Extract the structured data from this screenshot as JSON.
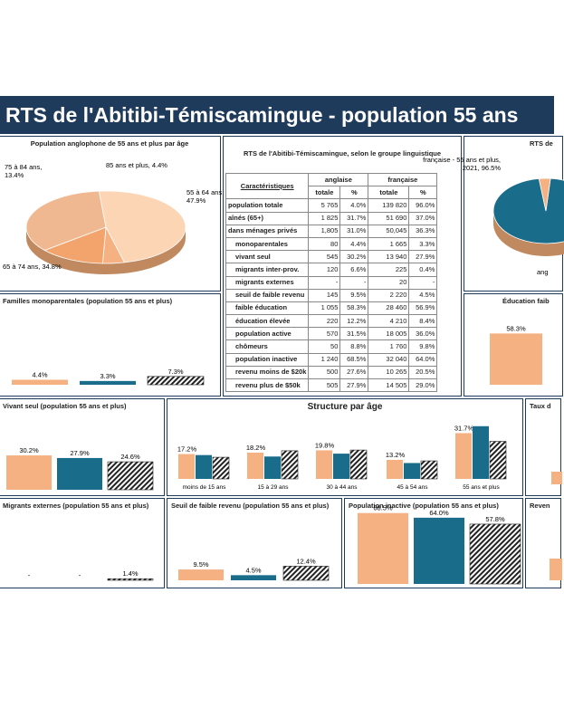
{
  "banner": {
    "title": "RTS de l'Abitibi-Témiscamingue - population 55 ans"
  },
  "colors": {
    "orange": "#f6b183",
    "teal": "#1a6d8a",
    "hatch": "#222222",
    "navy": "#1f3b5c"
  },
  "table": {
    "title": "RTS de l'Abitibi-Témiscamingue, selon le groupe linguistique",
    "header_char": "Caractéristiques",
    "header_groups": [
      "anglaise",
      "française"
    ],
    "header_sub": [
      "totale",
      "%",
      "totale",
      "%"
    ],
    "rows": [
      {
        "label": "population totale",
        "v": [
          "5 765",
          "4.0%",
          "139 820",
          "96.0%"
        ]
      },
      {
        "label": "aînés (65+)",
        "v": [
          "1 825",
          "31.7%",
          "51 690",
          "37.0%"
        ]
      },
      {
        "label": "dans ménages privés",
        "v": [
          "1,805",
          "31.0%",
          "50,045",
          "36.3%"
        ]
      },
      {
        "label": "monoparentales",
        "v": [
          "80",
          "4.4%",
          "1 665",
          "3.3%"
        ]
      },
      {
        "label": "vivant seul",
        "v": [
          "545",
          "30.2%",
          "13 940",
          "27.9%"
        ]
      },
      {
        "label": "migrants inter-prov.",
        "v": [
          "120",
          "6.6%",
          "225",
          "0.4%"
        ]
      },
      {
        "label": "migrants externes",
        "v": [
          "-",
          "-",
          "20",
          "-"
        ]
      },
      {
        "label": "seuil de faible revenu",
        "v": [
          "145",
          "9.5%",
          "2 220",
          "4.5%"
        ]
      },
      {
        "label": "faible éducation",
        "v": [
          "1 055",
          "58.3%",
          "28 460",
          "56.9%"
        ]
      },
      {
        "label": "éducation élevée",
        "v": [
          "220",
          "12.2%",
          "4 210",
          "8.4%"
        ]
      },
      {
        "label": "population active",
        "v": [
          "570",
          "31.5%",
          "18 005",
          "36.0%"
        ]
      },
      {
        "label": "chômeurs",
        "v": [
          "50",
          "8.8%",
          "1 760",
          "9.8%"
        ]
      },
      {
        "label": "population inactive",
        "v": [
          "1 240",
          "68.5%",
          "32 040",
          "64.0%"
        ]
      },
      {
        "label": "revenu moins de $20k",
        "v": [
          "500",
          "27.6%",
          "10 265",
          "20.5%"
        ]
      },
      {
        "label": "revenu plus de $50k",
        "v": [
          "505",
          "27.9%",
          "14 505",
          "29.0%"
        ]
      }
    ]
  },
  "chart_data": [
    {
      "id": "pie_anglo",
      "type": "pie",
      "title": "Population anglophone de 55 ans et plus par âge",
      "slices": [
        {
          "label": "55 à 64 ans, 47.9%",
          "value": 47.9
        },
        {
          "label": "85 ans et plus, 4.4%",
          "value": 4.4
        },
        {
          "label": "75 à 84 ans, 13.4%",
          "value": 13.4
        },
        {
          "label": "65 à 74 ans, 34.8%",
          "value": 34.8
        }
      ]
    },
    {
      "id": "pie_lang",
      "type": "pie",
      "title": "RTS de",
      "slices": [
        {
          "label": "française - 55 ans et plus, 2021, 96.5%",
          "value": 96.5
        },
        {
          "label": "ang",
          "value": 3.5
        }
      ]
    },
    {
      "id": "mono",
      "type": "bar",
      "title": "Familles monoparentales (population 55 ans et plus)",
      "values": [
        4.4,
        3.3,
        7.3
      ],
      "labels": [
        "4.4%",
        "3.3%",
        "7.3%"
      ],
      "ylim": [
        0,
        70
      ]
    },
    {
      "id": "educ",
      "type": "bar",
      "title": "Éducation faib",
      "values": [
        58.3
      ],
      "labels": [
        "58.3%"
      ],
      "ylim": [
        0,
        70
      ]
    },
    {
      "id": "seul",
      "type": "bar",
      "title": "Vivant seul (population 55 ans et plus)",
      "values": [
        30.2,
        27.9,
        24.6
      ],
      "labels": [
        "30.2%",
        "27.9%",
        "24.6%"
      ],
      "ylim": [
        0,
        70
      ]
    },
    {
      "id": "age",
      "type": "bar",
      "title": "Structure par âge",
      "categories": [
        "moins de 15 ans",
        "15 à 29 ans",
        "30 à 44 ans",
        "45 à 54 ans",
        "55 ans et plus"
      ],
      "series": [
        {
          "values": [
            17.2,
            18.2,
            19.8,
            13.2,
            31.7
          ],
          "labels": [
            "17.2%",
            "18.2%",
            "19.8%",
            "13.2%",
            "31.7%"
          ]
        },
        {
          "values": [
            16.5,
            15.5,
            17.5,
            11.0,
            36.5
          ]
        },
        {
          "values": [
            15.0,
            19.5,
            20.0,
            12.5,
            26.0
          ]
        }
      ],
      "ylim": [
        0,
        40
      ]
    },
    {
      "id": "taux",
      "type": "bar",
      "title": "Taux d",
      "values": [],
      "ylim": [
        0,
        70
      ]
    },
    {
      "id": "migr",
      "type": "bar",
      "title": "Migrants externes (population 55 ans et plus)",
      "values": [
        0,
        0,
        1.4
      ],
      "labels": [
        "-",
        "-",
        "1.4%"
      ],
      "ylim": [
        0,
        70
      ]
    },
    {
      "id": "faible",
      "type": "bar",
      "title": "Seuil de faible revenu (population 55 ans et plus)",
      "values": [
        9.5,
        4.5,
        12.4
      ],
      "labels": [
        "9.5%",
        "4.5%",
        "12.4%"
      ],
      "ylim": [
        0,
        70
      ]
    },
    {
      "id": "inactive",
      "type": "bar",
      "title": "Population inactive (population 55 ans et plus)",
      "values": [
        68.5,
        64.0,
        57.8
      ],
      "labels": [
        "68.5%",
        "64.0%",
        "57.8%"
      ],
      "ylim": [
        0,
        70
      ]
    },
    {
      "id": "reven",
      "type": "bar",
      "title": "Reven",
      "values": [],
      "ylim": [
        0,
        70
      ]
    }
  ]
}
